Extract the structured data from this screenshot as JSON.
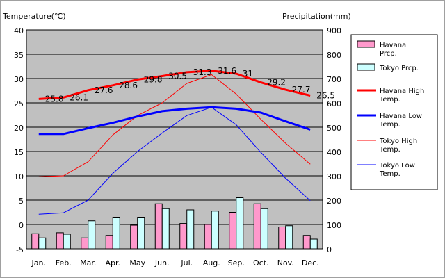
{
  "chart_data": {
    "type": "bar+line",
    "left_axis_title": "Temperature(℃)",
    "right_axis_title": "Precipitation(mm)",
    "left_ylim": [
      -5,
      40
    ],
    "left_ticks": [
      "40",
      "35",
      "30",
      "25",
      "20",
      "15",
      "10",
      "5",
      "0",
      "-5"
    ],
    "right_ylim": [
      0,
      900
    ],
    "right_ticks": [
      "900",
      "800",
      "700",
      "600",
      "500",
      "400",
      "300",
      "200",
      "100",
      "0"
    ],
    "categories": [
      "Jan.",
      "Feb.",
      "Mar.",
      "Apr.",
      "May",
      "Jun.",
      "Jul.",
      "Aug.",
      "Sep.",
      "Oct.",
      "Nov.",
      "Dec."
    ],
    "bars": [
      {
        "name": "Havana Prcp.",
        "color": "#ff99cc",
        "axis": "right",
        "values": [
          62,
          66,
          45,
          55,
          97,
          185,
          104,
          100,
          150,
          185,
          90,
          55
        ]
      },
      {
        "name": "Tokyo Prcp.",
        "color": "#ccffff",
        "axis": "right",
        "values": [
          45,
          60,
          115,
          130,
          130,
          165,
          160,
          155,
          210,
          165,
          95,
          40
        ]
      }
    ],
    "lines": [
      {
        "name": "Havana High Temp.",
        "color": "#ff0000",
        "width": 3,
        "axis": "left",
        "values": [
          25.8,
          26.1,
          27.6,
          28.6,
          29.8,
          30.5,
          31.3,
          31.6,
          31.0,
          29.2,
          27.7,
          26.5
        ],
        "labels": [
          "25.8",
          "26.1",
          "27.6",
          "28.6",
          "29.8",
          "30.5",
          "31.3",
          "31.6",
          "31",
          "29.2",
          "27.7",
          "26.5"
        ]
      },
      {
        "name": "Havana Low Temp.",
        "color": "#0000ff",
        "width": 3,
        "axis": "left",
        "values": [
          18.6,
          18.6,
          19.8,
          20.9,
          22.2,
          23.3,
          23.8,
          24.1,
          23.8,
          23.0,
          21.2,
          19.5
        ]
      },
      {
        "name": "Tokyo High Temp.",
        "color": "#ff0000",
        "width": 1,
        "axis": "left",
        "values": [
          9.8,
          10.0,
          12.9,
          18.4,
          22.4,
          25.0,
          29.0,
          30.8,
          26.8,
          21.6,
          16.7,
          12.4
        ]
      },
      {
        "name": "Tokyo Low Temp.",
        "color": "#0000ff",
        "width": 1,
        "axis": "left",
        "values": [
          2.1,
          2.4,
          5.0,
          10.5,
          15.0,
          18.8,
          22.4,
          24.1,
          20.5,
          14.8,
          9.5,
          4.9
        ]
      }
    ],
    "legend_position": "right"
  },
  "colors": {
    "plot_bg": "#c0c0c0",
    "grid": "#000000"
  }
}
